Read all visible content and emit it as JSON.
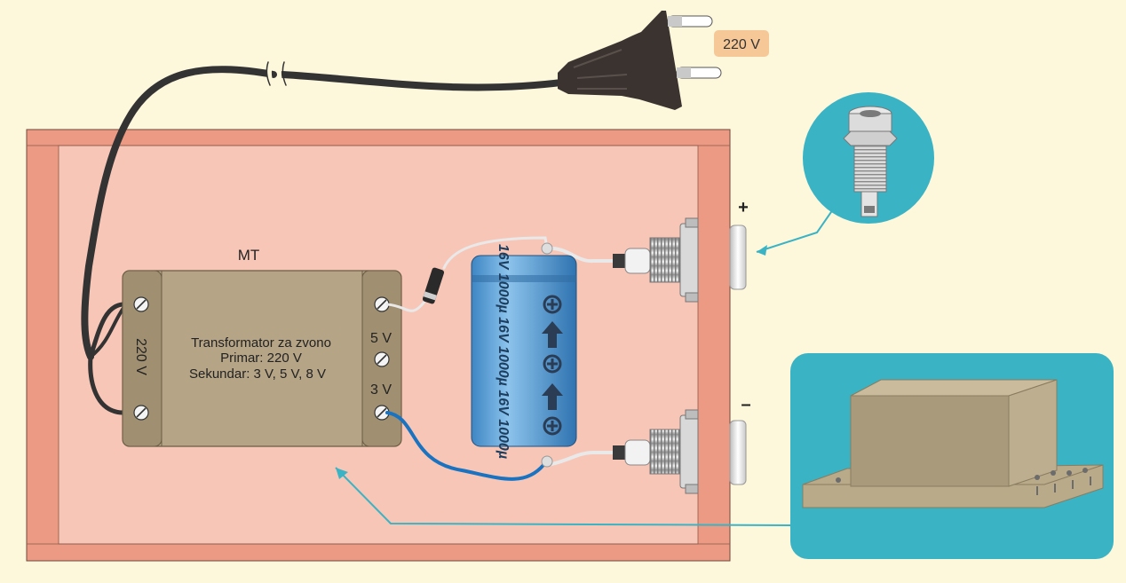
{
  "plug": {
    "voltage_label": "220 V"
  },
  "transformer": {
    "tag": "MT",
    "title": "Transformator za zvono",
    "primary": "Primar: 220 V",
    "secondary": "Sekundar: 3 V, 5 V, 8 V",
    "input_label": "220 V",
    "tap_5v": "5 V",
    "tap_3v": "3 V"
  },
  "capacitor": {
    "marking": "16V 1000µ 16V 1000µ 16V 1000µ"
  },
  "terminals": {
    "plus": "+",
    "minus": "–"
  },
  "colors": {
    "background": "#fdf7dc",
    "box_frame": "#ec9a83",
    "box_inner": "#f8c6b6",
    "transformer": "#b5a486",
    "capacitor": "#5b9fd4",
    "callout": "#3ab3c4",
    "cable": "#333333",
    "blue_wire": "#1a73c1",
    "label_bg": "#f6c898"
  }
}
